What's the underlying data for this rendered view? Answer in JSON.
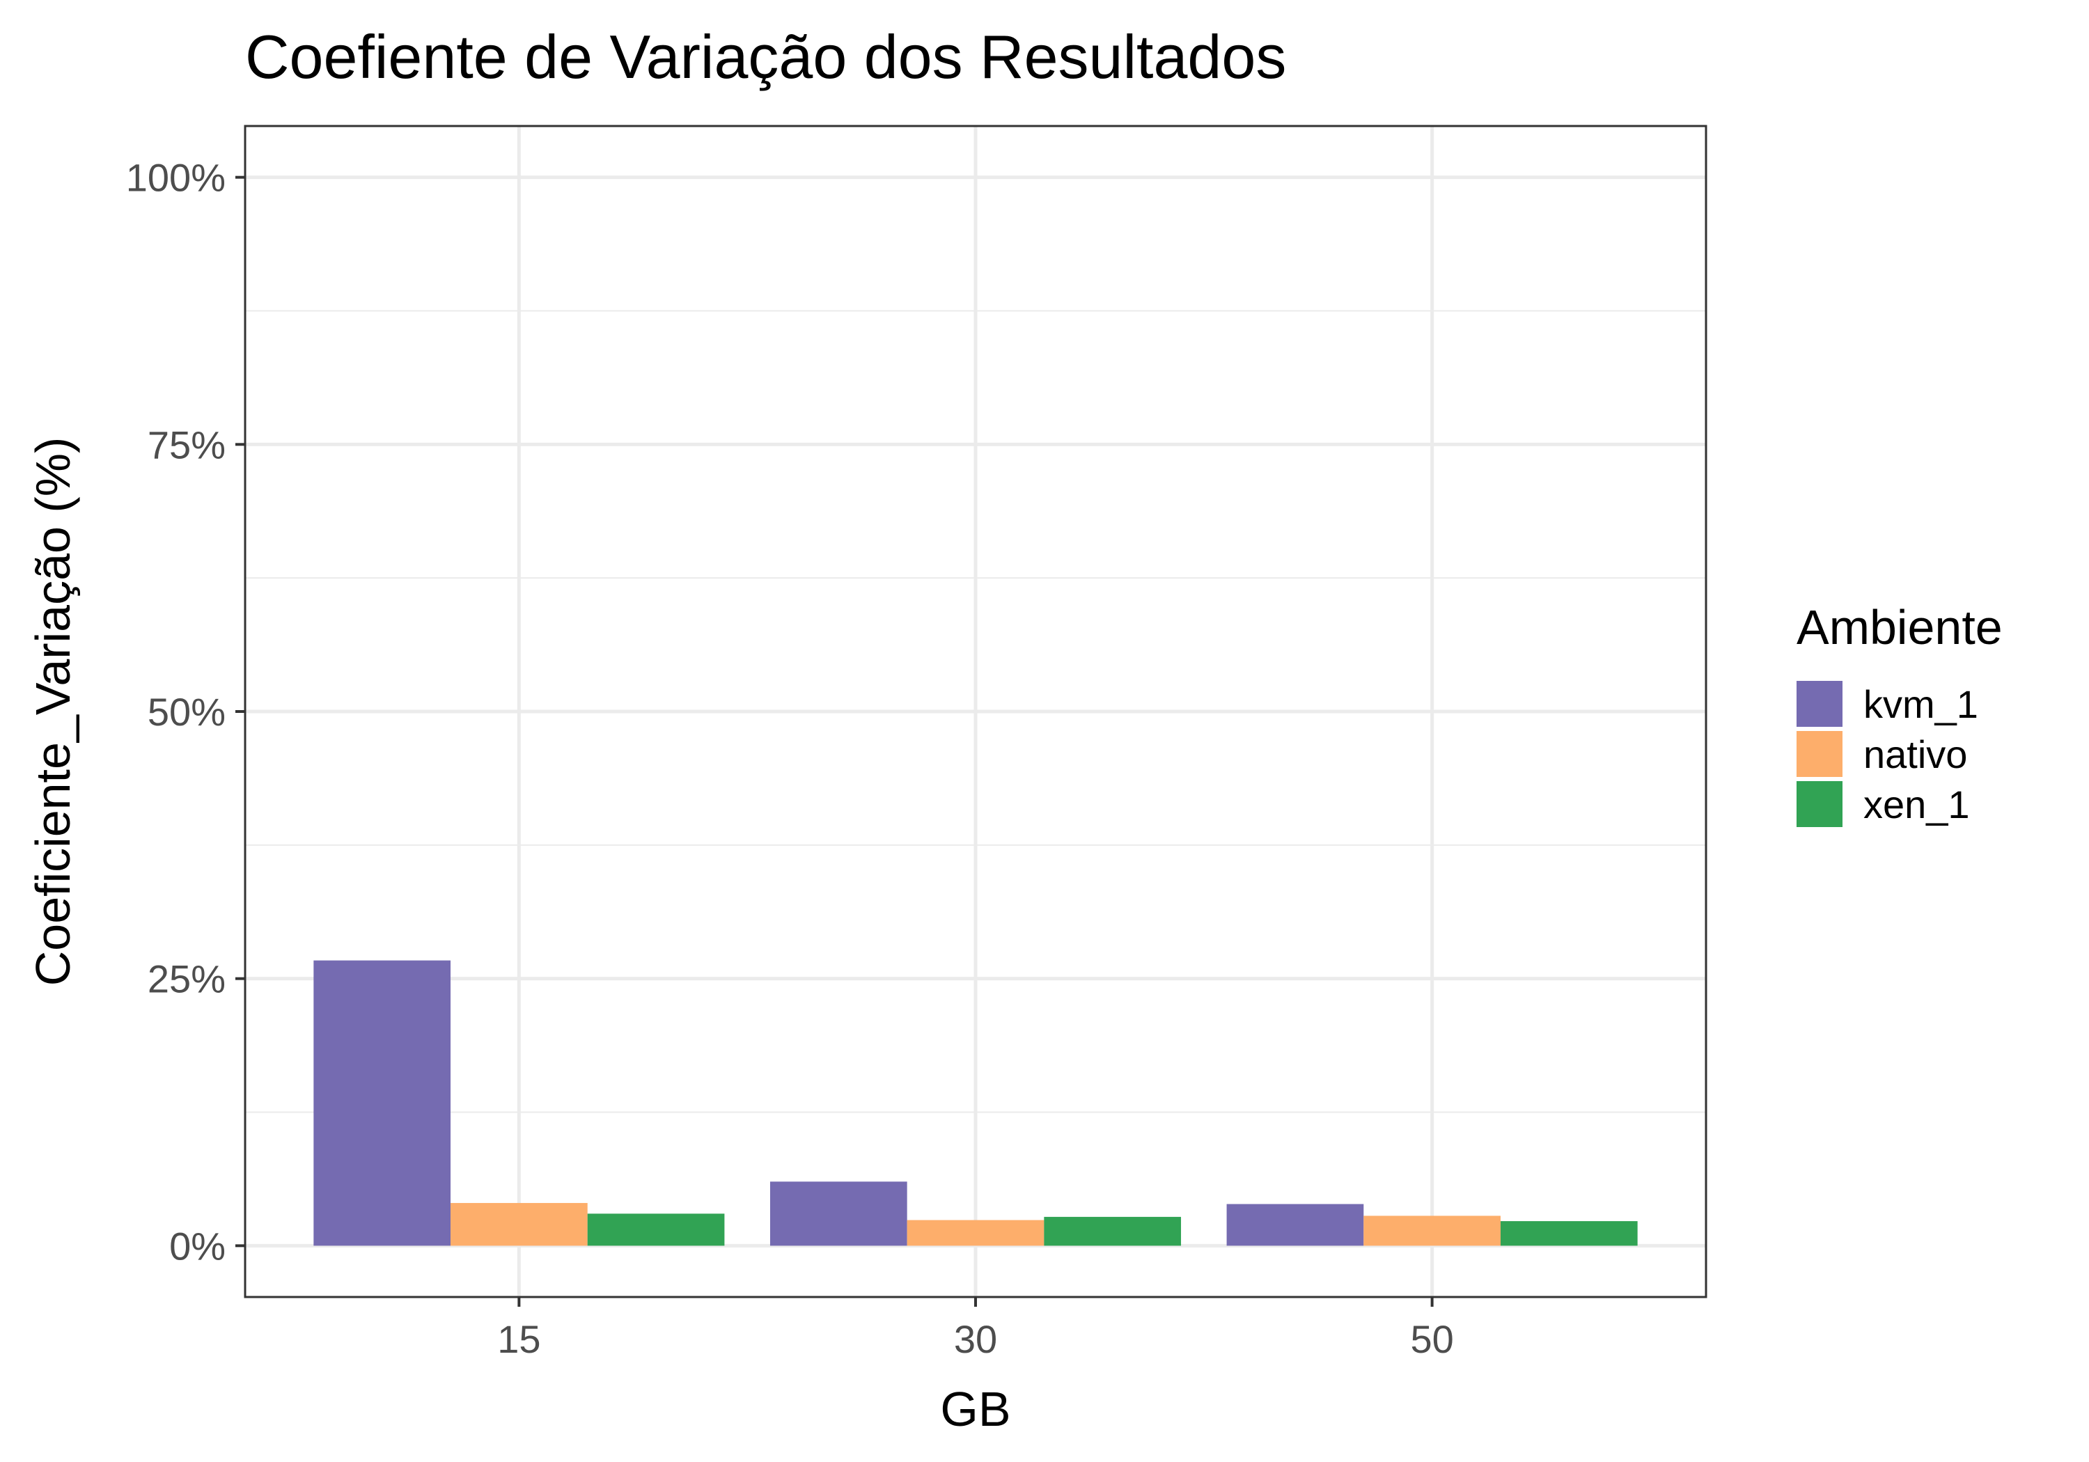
{
  "chart_data": {
    "type": "bar",
    "title": "Coefiente de Variação dos Resultados",
    "xlabel": "GB",
    "ylabel": "Coeficiente_Variação (%)",
    "categories": [
      "15",
      "30",
      "50"
    ],
    "series": [
      {
        "name": "kvm_1",
        "color": "#756bb1",
        "values": [
          26.7,
          6.0,
          3.9
        ]
      },
      {
        "name": "nativo",
        "color": "#fdae6b",
        "values": [
          4.0,
          2.4,
          2.8
        ]
      },
      {
        "name": "xen_1",
        "color": "#31a354",
        "values": [
          3.0,
          2.7,
          2.3
        ]
      }
    ],
    "ylim": [
      -4.8,
      104.8
    ],
    "y_ticks": [
      0,
      25,
      50,
      75,
      100
    ],
    "y_tick_labels": [
      "0%",
      "25%",
      "50%",
      "75%",
      "100%"
    ],
    "grid": true,
    "legend": {
      "title": "Ambiente",
      "position": "right"
    }
  }
}
